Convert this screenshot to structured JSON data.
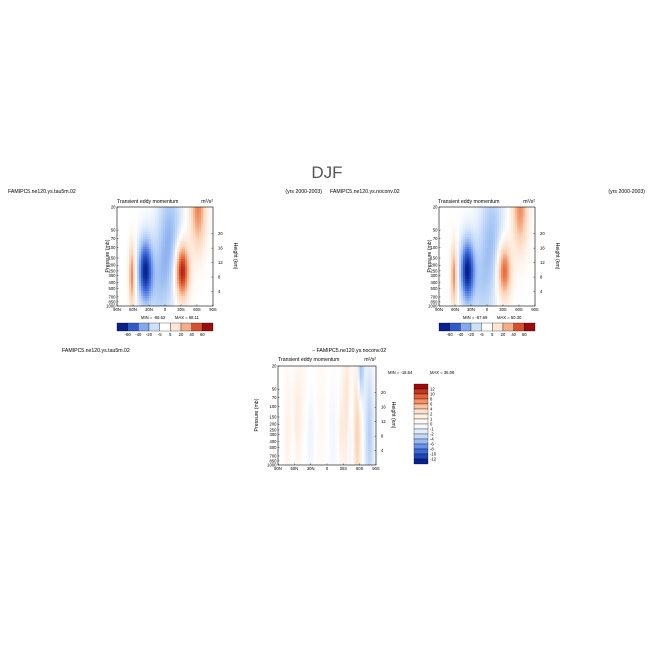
{
  "figure": {
    "title": "DJF",
    "colors": {
      "neg_strong": "#08218f",
      "neg_mid": "#3f6fe0",
      "neg_light": "#a9c8f5",
      "neutral": "#ffffff",
      "pos_light": "#fbd3b5",
      "pos_mid": "#ea6a3a",
      "pos_strong": "#9e0b0b"
    }
  },
  "chart_data": [
    {
      "type": "heatmap",
      "case_label": "FAMIPC5.ne120.ys.tau5m.02",
      "title": "Transient eddy momentum",
      "units": "m²/s²",
      "years": "(yrs 2000-2003)",
      "ylabel": "Pressure (mb)",
      "y2label": "Height (km)",
      "x_ticks": [
        "90N",
        "60N",
        "30N",
        "0",
        "30S",
        "60S",
        "90S"
      ],
      "y_ticks": [
        "20",
        "50",
        "70",
        "100",
        "150",
        "200",
        "250",
        "300",
        "400",
        "500",
        "700",
        "850",
        "1000"
      ],
      "y2_ticks": [
        "20",
        "16",
        "12",
        "8",
        "4"
      ],
      "min_label": "MIN = -66.52",
      "max_label": "MAX = 68.11",
      "min": -66.52,
      "max": 68.11,
      "colorbar_labels": [
        "-60",
        "-40",
        "-20",
        "-5",
        "5",
        "20",
        "40",
        "60"
      ],
      "blobs": [
        {
          "lat": -32,
          "p": 250,
          "value": 68,
          "slat": 9,
          "sp": 0.16
        },
        {
          "lat": -62,
          "p": 20,
          "value": 40,
          "slat": 10,
          "sp": 0.25
        },
        {
          "lat": -10,
          "p": 60,
          "value": -25,
          "slat": 15,
          "sp": 0.35
        },
        {
          "lat": 37,
          "p": 250,
          "value": -66,
          "slat": 9,
          "sp": 0.18
        },
        {
          "lat": 62,
          "p": 300,
          "value": 40,
          "slat": 4,
          "sp": 0.18
        },
        {
          "lat": 10,
          "p": 400,
          "value": -18,
          "slat": 14,
          "sp": 0.3
        }
      ]
    },
    {
      "type": "heatmap",
      "case_label": "FAMIPC5.ne120.ys.noconv.02",
      "title": "Transient eddy momentum",
      "units": "m²/s²",
      "years": "(yrs 2000-2003)",
      "ylabel": "Pressure (mb)",
      "y2label": "Height (km)",
      "x_ticks": [
        "90N",
        "60N",
        "30N",
        "0",
        "30S",
        "60S",
        "90S"
      ],
      "y_ticks": [
        "20",
        "50",
        "70",
        "100",
        "150",
        "200",
        "250",
        "300",
        "400",
        "500",
        "700",
        "850",
        "1000"
      ],
      "y2_ticks": [
        "20",
        "16",
        "12",
        "8",
        "4"
      ],
      "min_label": "MIN = -67.69",
      "max_label": "MAX = 50.30",
      "min": -67.69,
      "max": 50.3,
      "colorbar_labels": [
        "-60",
        "-40",
        "-20",
        "-5",
        "5",
        "20",
        "40",
        "60"
      ],
      "blobs": [
        {
          "lat": -32,
          "p": 250,
          "value": 50,
          "slat": 9,
          "sp": 0.16
        },
        {
          "lat": -62,
          "p": 20,
          "value": 38,
          "slat": 10,
          "sp": 0.25
        },
        {
          "lat": -10,
          "p": 60,
          "value": -22,
          "slat": 15,
          "sp": 0.35
        },
        {
          "lat": 37,
          "p": 250,
          "value": -67,
          "slat": 9,
          "sp": 0.18
        },
        {
          "lat": 62,
          "p": 300,
          "value": 38,
          "slat": 4,
          "sp": 0.18
        },
        {
          "lat": 10,
          "p": 400,
          "value": -16,
          "slat": 14,
          "sp": 0.3
        }
      ]
    },
    {
      "type": "heatmap",
      "case_label": "FAMIPC5.ne120.ys.tau5m.02",
      "title": "Transient eddy momentum",
      "title_prefix": "− FAMIPC5.ne120.ys.noconv.02",
      "units": "m²/s²",
      "ylabel": "Pressure (mb)",
      "y2label": "Height (km)",
      "x_ticks": [
        "90N",
        "60N",
        "30N",
        "0",
        "30S",
        "60S",
        "90S"
      ],
      "y_ticks": [
        "20",
        "50",
        "70",
        "100",
        "150",
        "200",
        "250",
        "300",
        "400",
        "500",
        "700",
        "850",
        "1000"
      ],
      "y2_ticks": [
        "20",
        "16",
        "12",
        "8",
        "4"
      ],
      "min_label": "MIN = -18.64",
      "max_label": "MAX = 35.06",
      "min": -18.64,
      "max": 35.06,
      "colorbar_labels": [
        "12",
        "10",
        "8",
        "6",
        "4",
        "2",
        "1",
        "0",
        "-1",
        "-2",
        "-4",
        "-6",
        "-8",
        "-10",
        "-12"
      ],
      "blobs": [
        {
          "lat": -62,
          "p": 20,
          "value": -14,
          "slat": 4,
          "sp": 0.2
        },
        {
          "lat": -78,
          "p": 300,
          "value": -10,
          "slat": 6,
          "sp": 0.4
        },
        {
          "lat": -55,
          "p": 300,
          "value": 12,
          "slat": 5,
          "sp": 0.4
        },
        {
          "lat": -45,
          "p": 250,
          "value": -6,
          "slat": 4,
          "sp": 0.3
        },
        {
          "lat": -35,
          "p": 150,
          "value": 5,
          "slat": 6,
          "sp": 0.4
        },
        {
          "lat": -25,
          "p": 250,
          "value": 4,
          "slat": 4,
          "sp": 0.2
        },
        {
          "lat": -40,
          "p": 50,
          "value": 3,
          "slat": 6,
          "sp": 0.3
        },
        {
          "lat": -10,
          "p": 300,
          "value": -2,
          "slat": 8,
          "sp": 0.35
        },
        {
          "lat": 10,
          "p": 150,
          "value": 2,
          "slat": 10,
          "sp": 0.4
        },
        {
          "lat": 30,
          "p": 250,
          "value": -3,
          "slat": 6,
          "sp": 0.3
        },
        {
          "lat": 55,
          "p": 250,
          "value": 5,
          "slat": 5,
          "sp": 0.3
        },
        {
          "lat": 72,
          "p": 400,
          "value": 4,
          "slat": 5,
          "sp": 0.4
        },
        {
          "lat": 45,
          "p": 40,
          "value": 2,
          "slat": 10,
          "sp": 0.4
        },
        {
          "lat": 60,
          "p": 700,
          "value": -2,
          "slat": 8,
          "sp": 0.2
        }
      ]
    }
  ]
}
